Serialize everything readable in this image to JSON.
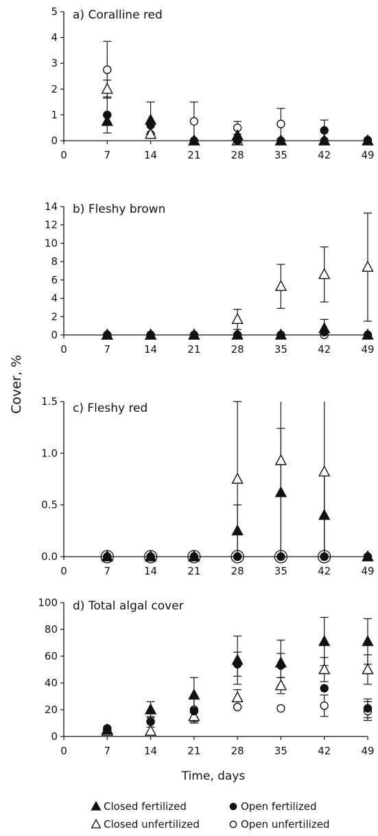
{
  "chart_data": [
    {
      "type": "scatter",
      "title": "a) Coralline red",
      "x": [
        7,
        14,
        21,
        28,
        35,
        42,
        49
      ],
      "xlim": [
        0,
        49
      ],
      "xticks": [
        "0",
        "7",
        "14",
        "21",
        "28",
        "35",
        "42",
        "49"
      ],
      "ylim": [
        0,
        5
      ],
      "yticks": [
        "0",
        "1",
        "2",
        "3",
        "4",
        "5"
      ],
      "series": [
        {
          "name": "Closed  fertilized",
          "marker": "filled-triangle",
          "values": [
            0.75,
            0.8,
            0,
            0.2,
            0,
            0,
            0
          ],
          "err": [
            0,
            0.7,
            0,
            0,
            0,
            0,
            0
          ]
        },
        {
          "name": "Closed  unfertilized",
          "marker": "open-triangle",
          "values": [
            2.0,
            0.25,
            0,
            0,
            0,
            0,
            0
          ],
          "err": [
            0.35,
            0,
            0,
            0,
            0,
            0,
            0
          ]
        },
        {
          "name": "Open  fertilized",
          "marker": "filled-circle",
          "values": [
            1.0,
            0.6,
            0,
            0,
            0,
            0.4,
            0.02
          ],
          "err": [
            0.7,
            0,
            0,
            0,
            0,
            0.4,
            0
          ]
        },
        {
          "name": "Open  unfertilized",
          "marker": "open-circle",
          "values": [
            2.75,
            0.25,
            0.75,
            0.5,
            0.65,
            0,
            0
          ],
          "err": [
            1.1,
            0,
            0.75,
            0.25,
            0.6,
            0,
            0
          ]
        }
      ]
    },
    {
      "type": "scatter",
      "title": "b) Fleshy brown",
      "x": [
        7,
        14,
        21,
        28,
        35,
        42,
        49
      ],
      "xlim": [
        0,
        49
      ],
      "xticks": [
        "0",
        "7",
        "14",
        "21",
        "28",
        "35",
        "42",
        "49"
      ],
      "ylim": [
        0,
        14
      ],
      "yticks": [
        "0",
        "2",
        "4",
        "6",
        "8",
        "10",
        "12",
        "14"
      ],
      "series": [
        {
          "name": "Closed  fertilized",
          "marker": "filled-triangle",
          "values": [
            0,
            0,
            0,
            0,
            0,
            0.7,
            0
          ],
          "err": [
            0,
            0,
            0,
            0,
            0,
            1.0,
            0
          ]
        },
        {
          "name": "Closed  unfertilized",
          "marker": "open-triangle",
          "values": [
            0,
            0,
            0,
            1.7,
            5.3,
            6.6,
            7.4
          ],
          "err": [
            0,
            0,
            0,
            1.1,
            2.4,
            3.0,
            5.9
          ]
        },
        {
          "name": "Open  fertilized",
          "marker": "filled-circle",
          "values": [
            0,
            0,
            0,
            0,
            0,
            0.3,
            0
          ],
          "err": [
            0,
            0,
            0,
            0,
            0,
            0,
            0
          ]
        },
        {
          "name": "Open  unfertilized",
          "marker": "open-circle",
          "values": [
            0,
            0,
            0,
            0,
            0,
            0,
            0
          ],
          "err": [
            0,
            0,
            0,
            0,
            0,
            0,
            0
          ]
        }
      ]
    },
    {
      "type": "scatter",
      "title": "c) Fleshy red",
      "x": [
        7,
        14,
        21,
        28,
        35,
        42,
        49
      ],
      "xlim": [
        0,
        49
      ],
      "xticks": [
        "0",
        "7",
        "14",
        "21",
        "28",
        "35",
        "42",
        "49"
      ],
      "ylim": [
        0,
        1.5
      ],
      "yticks": [
        "0.0",
        "0.5",
        "1.0",
        "1.5"
      ],
      "series": [
        {
          "name": "Closed  fertilized",
          "marker": "filled-triangle",
          "values": [
            0,
            0,
            0,
            0.25,
            0.62,
            0.4,
            0
          ],
          "err": [
            0,
            0,
            0,
            0.25,
            0.62,
            0.4,
            0
          ]
        },
        {
          "name": "Closed  unfertilized",
          "marker": "open-triangle",
          "values": [
            0,
            0,
            0,
            0.75,
            0.93,
            0.82,
            0
          ],
          "err": [
            0,
            0,
            0,
            0.75,
            0.93,
            0.82,
            0
          ]
        },
        {
          "name": "Open  fertilized",
          "marker": "filled-circle",
          "values": [
            0,
            0,
            0,
            0,
            0,
            0,
            0
          ],
          "err": [
            0,
            0,
            0,
            0,
            0,
            0,
            0
          ]
        },
        {
          "name": "Open  unfertilized",
          "marker": "open-circle",
          "values": [
            0,
            0,
            0,
            0,
            0,
            0,
            0
          ],
          "err": [
            0,
            0,
            0,
            0,
            0,
            0,
            0
          ]
        }
      ]
    },
    {
      "type": "scatter",
      "title": "d) Total algal cover",
      "x": [
        7,
        14,
        21,
        28,
        35,
        42,
        49
      ],
      "xlim": [
        0,
        49
      ],
      "xticks": [
        "0",
        "7",
        "14",
        "21",
        "28",
        "35",
        "42",
        "49"
      ],
      "ylim": [
        0,
        100
      ],
      "yticks": [
        "0",
        "20",
        "40",
        "60",
        "80",
        "100"
      ],
      "xlabel": "Time, days",
      "series": [
        {
          "name": "Closed  fertilized",
          "marker": "filled-triangle",
          "values": [
            5,
            20,
            31,
            57,
            55,
            71,
            71
          ],
          "err": [
            0,
            6,
            13,
            18,
            17,
            18,
            17
          ]
        },
        {
          "name": "Closed  unfertilized",
          "marker": "open-triangle",
          "values": [
            4,
            4,
            15,
            29,
            38,
            50,
            50
          ],
          "err": [
            0,
            0,
            4,
            6,
            6,
            9,
            11
          ]
        },
        {
          "name": "Open  fertilized",
          "marker": "filled-circle",
          "values": [
            6,
            11,
            19,
            54,
            53,
            36,
            21
          ],
          "err": [
            0,
            4,
            9,
            9,
            9,
            0,
            7
          ]
        },
        {
          "name": "Open  unfertilized",
          "marker": "open-circle",
          "values": [
            5,
            11,
            20,
            22,
            21,
            23,
            19
          ],
          "err": [
            0,
            0,
            0,
            0,
            0,
            8,
            7
          ]
        }
      ]
    }
  ],
  "ylabel": "Cover, %",
  "legend": [
    {
      "label": "Closed  fertilized",
      "marker": "filled-triangle"
    },
    {
      "label": "Open  fertilized",
      "marker": "filled-circle"
    },
    {
      "label": "Closed  unfertilized",
      "marker": "open-triangle"
    },
    {
      "label": "Open  unfertilized",
      "marker": "open-circle"
    }
  ]
}
